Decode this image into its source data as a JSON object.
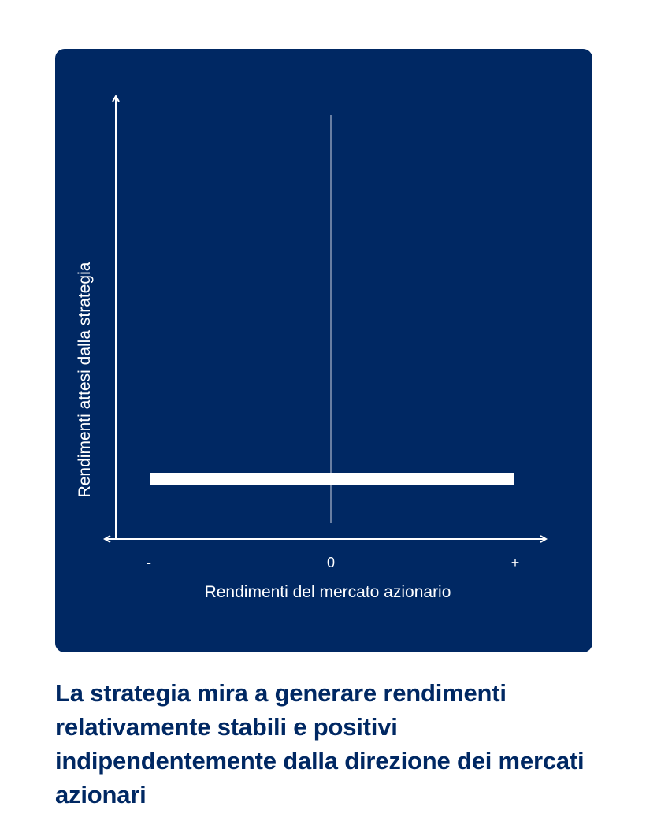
{
  "diagram": {
    "y_axis_label": "Rendimenti attesi dalla strategia",
    "x_axis_label": "Rendimenti del mercato azionario",
    "x_ticks": {
      "minus": "-",
      "zero": "0",
      "plus": "+"
    },
    "line_description_level": "constant positive return across market returns"
  },
  "caption": "La strategia mira a generare rendimenti relativamente stabili e positivi indipendentemente dalla direzione dei mercati azionari",
  "colors": {
    "panel_background": "#002863",
    "foreground": "#ffffff",
    "caption_text": "#002863"
  }
}
